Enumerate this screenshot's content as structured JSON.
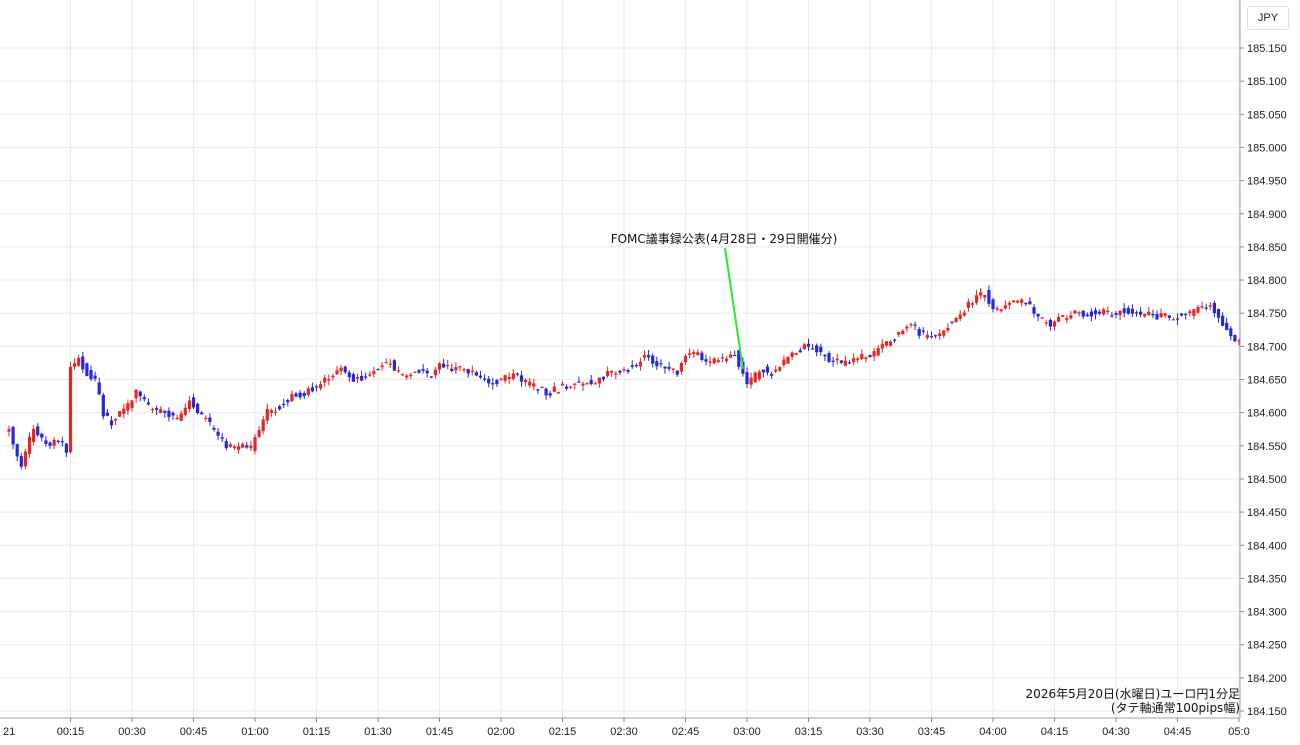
{
  "currency": "JPY",
  "caption": {
    "line1": "2026年5月20日(水曜日)ユーロ円1分足",
    "line2": "(タテ軸通常100pips幅)"
  },
  "colors": {
    "up": "#e32626",
    "down": "#2727d6",
    "grid": "#e3ebf1",
    "annotation": "#2ee62e"
  },
  "chart_data": {
    "type": "candlestick",
    "x": {
      "edge_label": "21",
      "ticks": [
        "00:15",
        "00:30",
        "00:45",
        "01:00",
        "01:15",
        "01:30",
        "01:45",
        "02:00",
        "02:15",
        "02:30",
        "02:45",
        "03:00",
        "03:15",
        "03:30",
        "03:45",
        "04:00",
        "04:15",
        "04:30",
        "04:45",
        "05:0"
      ]
    },
    "y": {
      "ticks": [
        "185.150",
        "185.100",
        "185.050",
        "185.000",
        "184.950",
        "184.900",
        "184.850",
        "184.800",
        "184.750",
        "184.700",
        "184.650",
        "184.600",
        "184.550",
        "184.500",
        "184.450",
        "184.400",
        "184.350",
        "184.300",
        "184.250",
        "184.200",
        "184.150"
      ],
      "range": [
        184.13,
        185.17
      ]
    },
    "grid": true,
    "annotation": {
      "text": "FOMC議事録公表(4月28日・29日開催分)",
      "time": "02:59"
    },
    "path": [
      [
        "00:00",
        184.575
      ],
      [
        "00:03",
        184.52
      ],
      [
        "00:06",
        184.58
      ],
      [
        "00:09",
        184.55
      ],
      [
        "00:12",
        184.56
      ],
      [
        "00:14",
        184.545
      ],
      [
        "00:15",
        184.665
      ],
      [
        "00:17",
        184.68
      ],
      [
        "00:19",
        184.66
      ],
      [
        "00:21",
        184.65
      ],
      [
        "00:23",
        184.6
      ],
      [
        "00:25",
        184.585
      ],
      [
        "00:27",
        184.6
      ],
      [
        "00:29",
        184.61
      ],
      [
        "00:31",
        184.635
      ],
      [
        "00:33",
        184.615
      ],
      [
        "00:35",
        184.605
      ],
      [
        "00:38",
        184.6
      ],
      [
        "00:41",
        184.59
      ],
      [
        "00:44",
        184.62
      ],
      [
        "00:47",
        184.595
      ],
      [
        "00:50",
        184.575
      ],
      [
        "00:53",
        184.545
      ],
      [
        "00:56",
        184.55
      ],
      [
        "00:59",
        184.545
      ],
      [
        "01:00",
        184.56
      ],
      [
        "01:03",
        184.6
      ],
      [
        "01:06",
        184.61
      ],
      [
        "01:09",
        184.625
      ],
      [
        "01:12",
        184.63
      ],
      [
        "01:15",
        184.64
      ],
      [
        "01:18",
        184.655
      ],
      [
        "01:21",
        184.665
      ],
      [
        "01:24",
        184.65
      ],
      [
        "01:27",
        184.655
      ],
      [
        "01:30",
        184.67
      ],
      [
        "01:33",
        184.675
      ],
      [
        "01:35",
        184.66
      ],
      [
        "01:37",
        184.655
      ],
      [
        "01:40",
        184.665
      ],
      [
        "01:43",
        184.655
      ],
      [
        "01:45",
        184.675
      ],
      [
        "01:48",
        184.665
      ],
      [
        "01:51",
        184.665
      ],
      [
        "01:54",
        184.66
      ],
      [
        "01:57",
        184.645
      ],
      [
        "02:00",
        184.65
      ],
      [
        "02:03",
        184.655
      ],
      [
        "02:06",
        184.645
      ],
      [
        "02:09",
        184.635
      ],
      [
        "02:12",
        184.63
      ],
      [
        "02:15",
        184.64
      ],
      [
        "02:18",
        184.645
      ],
      [
        "02:21",
        184.645
      ],
      [
        "02:24",
        184.65
      ],
      [
        "02:27",
        184.66
      ],
      [
        "02:30",
        184.665
      ],
      [
        "02:33",
        184.67
      ],
      [
        "02:35",
        184.69
      ],
      [
        "02:37",
        184.675
      ],
      [
        "02:40",
        184.665
      ],
      [
        "02:43",
        184.66
      ],
      [
        "02:45",
        184.685
      ],
      [
        "02:48",
        184.69
      ],
      [
        "02:51",
        184.675
      ],
      [
        "02:54",
        184.68
      ],
      [
        "02:57",
        184.69
      ],
      [
        "02:59",
        184.66
      ],
      [
        "03:00",
        184.64
      ],
      [
        "03:02",
        184.655
      ],
      [
        "03:04",
        184.665
      ],
      [
        "03:06",
        184.66
      ],
      [
        "03:08",
        184.67
      ],
      [
        "03:11",
        184.69
      ],
      [
        "03:14",
        184.7
      ],
      [
        "03:17",
        184.695
      ],
      [
        "03:20",
        184.68
      ],
      [
        "03:23",
        184.675
      ],
      [
        "03:26",
        184.68
      ],
      [
        "03:29",
        184.685
      ],
      [
        "03:31",
        184.69
      ],
      [
        "03:34",
        184.705
      ],
      [
        "03:37",
        184.72
      ],
      [
        "03:40",
        184.735
      ],
      [
        "03:42",
        184.72
      ],
      [
        "03:44",
        184.715
      ],
      [
        "03:47",
        184.72
      ],
      [
        "03:50",
        184.74
      ],
      [
        "03:53",
        184.755
      ],
      [
        "03:56",
        184.775
      ],
      [
        "03:58",
        184.78
      ],
      [
        "04:00",
        184.755
      ],
      [
        "04:02",
        184.755
      ],
      [
        "04:05",
        184.77
      ],
      [
        "04:08",
        184.765
      ],
      [
        "04:11",
        184.745
      ],
      [
        "04:14",
        184.73
      ],
      [
        "04:17",
        184.745
      ],
      [
        "04:20",
        184.75
      ],
      [
        "04:23",
        184.75
      ],
      [
        "04:26",
        184.75
      ],
      [
        "04:29",
        184.75
      ],
      [
        "04:32",
        184.755
      ],
      [
        "04:35",
        184.75
      ],
      [
        "04:38",
        184.75
      ],
      [
        "04:41",
        184.745
      ],
      [
        "04:44",
        184.745
      ],
      [
        "04:47",
        184.745
      ],
      [
        "04:50",
        184.76
      ],
      [
        "04:53",
        184.765
      ],
      [
        "04:56",
        184.735
      ],
      [
        "04:59",
        184.71
      ],
      [
        "05:00",
        184.705
      ]
    ]
  }
}
